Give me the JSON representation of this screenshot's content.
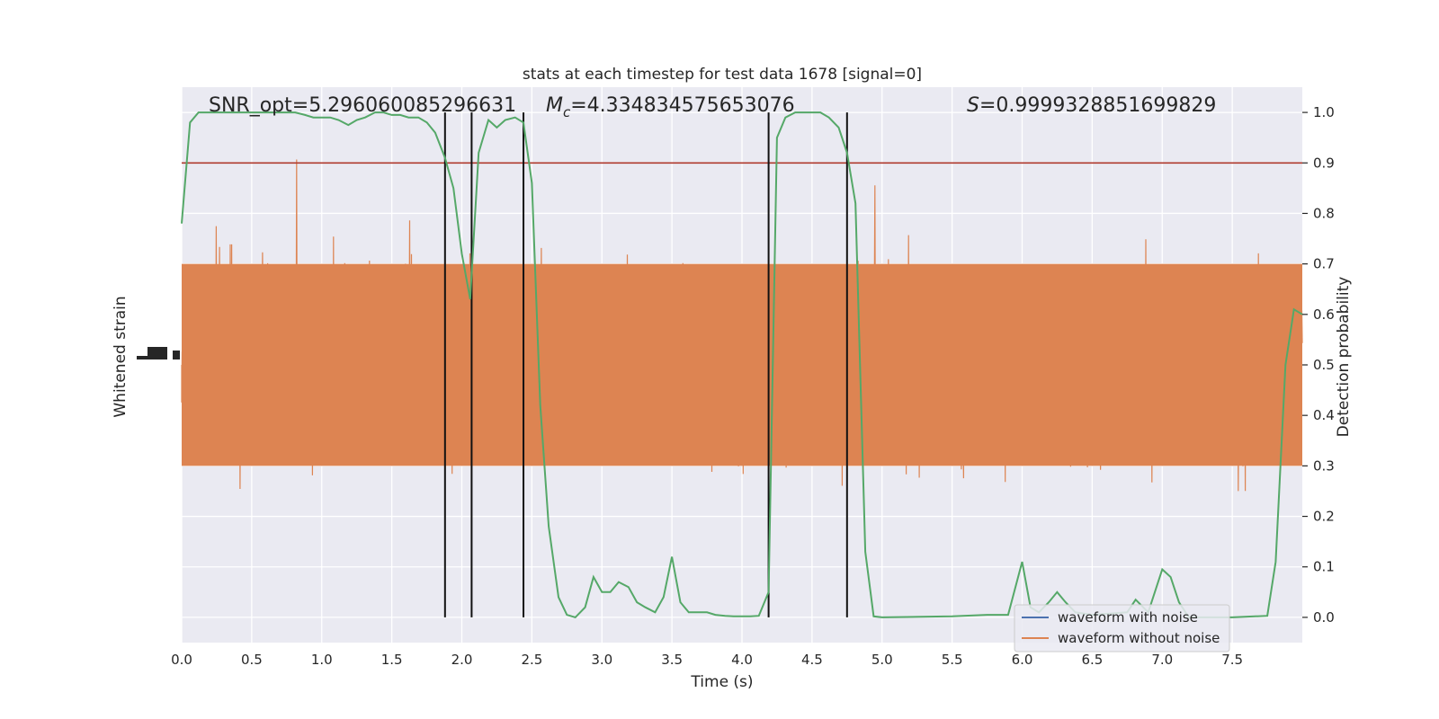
{
  "chart_data": {
    "type": "line",
    "title": "stats at each timestep for test data 1678 [signal=0]",
    "xlabel": "Time (s)",
    "ylabel_left": "Whitened strain",
    "ylabel_right": "Detection probability",
    "xlim": [
      0,
      8
    ],
    "ylim_right": [
      -0.05,
      1.05
    ],
    "x_ticks": [
      "0.0",
      "0.5",
      "1.0",
      "1.5",
      "2.0",
      "2.5",
      "3.0",
      "3.5",
      "4.0",
      "4.5",
      "5.0",
      "5.5",
      "6.0",
      "6.5",
      "7.0",
      "7.5"
    ],
    "y_ticks_right": [
      "0.0",
      "0.1",
      "0.2",
      "0.3",
      "0.4",
      "0.5",
      "0.6",
      "0.7",
      "0.8",
      "0.9",
      "1.0"
    ],
    "grid": true,
    "threshold": 0.9,
    "annotations": {
      "snr": "SNR_opt=5.296060085296631",
      "mc_symbol": "M",
      "mc_sub": "c",
      "mc_value": "=4.334834575653076",
      "s_symbol": "S",
      "s_value": "=0.9999328851699829"
    },
    "vertical_lines": [
      1.88,
      2.07,
      2.44,
      4.19,
      4.75
    ],
    "series": [
      {
        "name": "waveform with noise",
        "color": "#4c72b0"
      },
      {
        "name": "waveform without noise",
        "color": "#dd8452"
      },
      {
        "color": "#55a868",
        "x": [
          0.0,
          0.06,
          0.12,
          0.19,
          0.25,
          0.31,
          0.38,
          0.44,
          0.5,
          0.56,
          0.62,
          0.69,
          0.75,
          0.81,
          0.88,
          0.94,
          1.0,
          1.06,
          1.12,
          1.19,
          1.25,
          1.31,
          1.38,
          1.44,
          1.5,
          1.56,
          1.62,
          1.69,
          1.75,
          1.81,
          1.88,
          1.94,
          2.0,
          2.06,
          2.12,
          2.19,
          2.25,
          2.31,
          2.38,
          2.44,
          2.5,
          2.56,
          2.62,
          2.69,
          2.75,
          2.81,
          2.88,
          2.94,
          3.0,
          3.06,
          3.12,
          3.19,
          3.25,
          3.31,
          3.38,
          3.44,
          3.5,
          3.56,
          3.62,
          3.69,
          3.75,
          3.81,
          3.88,
          3.94,
          4.0,
          4.06,
          4.12,
          4.19,
          4.25,
          4.31,
          4.38,
          4.44,
          4.5,
          4.56,
          4.62,
          4.69,
          4.75,
          4.81,
          4.88,
          4.94,
          5.0,
          5.5,
          5.75,
          5.9,
          6.0,
          6.06,
          6.12,
          6.19,
          6.25,
          6.31,
          6.38,
          6.5,
          6.75,
          6.81,
          6.9,
          7.0,
          7.06,
          7.12,
          7.19,
          7.25,
          7.5,
          7.75,
          7.81,
          7.88,
          7.94,
          8.0
        ],
        "y": [
          0.78,
          0.98,
          1.0,
          1.0,
          1.0,
          1.0,
          1.0,
          1.0,
          1.0,
          1.0,
          1.0,
          1.0,
          1.0,
          1.0,
          0.995,
          0.99,
          0.99,
          0.99,
          0.985,
          0.975,
          0.985,
          0.99,
          1.0,
          1.0,
          0.995,
          0.995,
          0.99,
          0.99,
          0.98,
          0.96,
          0.91,
          0.85,
          0.72,
          0.63,
          0.92,
          0.985,
          0.97,
          0.985,
          0.99,
          0.98,
          0.86,
          0.42,
          0.18,
          0.04,
          0.005,
          0.0,
          0.02,
          0.08,
          0.05,
          0.05,
          0.07,
          0.06,
          0.03,
          0.02,
          0.01,
          0.04,
          0.12,
          0.03,
          0.01,
          0.01,
          0.01,
          0.005,
          0.003,
          0.002,
          0.002,
          0.002,
          0.003,
          0.05,
          0.95,
          0.99,
          1.0,
          1.0,
          1.0,
          1.0,
          0.99,
          0.97,
          0.92,
          0.82,
          0.13,
          0.002,
          0.0,
          0.002,
          0.005,
          0.005,
          0.11,
          0.02,
          0.01,
          0.03,
          0.05,
          0.03,
          0.01,
          0.005,
          0.01,
          0.035,
          0.01,
          0.095,
          0.08,
          0.03,
          0.0,
          0.0,
          0.0,
          0.003,
          0.11,
          0.5,
          0.61,
          0.6
        ]
      }
    ],
    "legend_position": "lower-right"
  }
}
